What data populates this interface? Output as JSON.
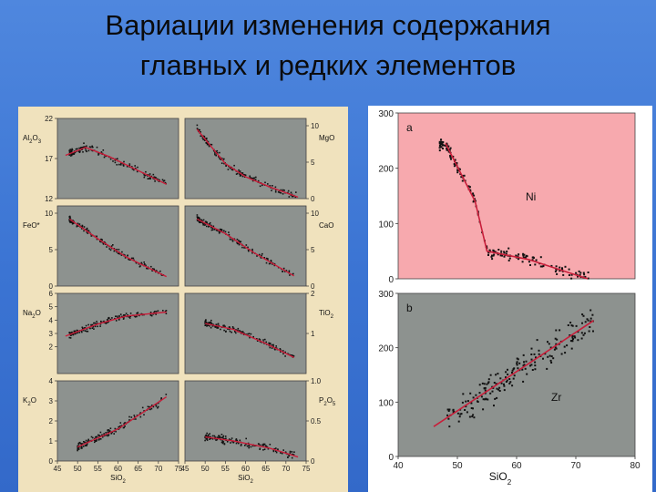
{
  "title": {
    "line1": "Вариации изменения содержания",
    "line2": "главных и редких элементов"
  },
  "colors": {
    "background": "#3b74d3",
    "left_panel": "#f0e2bd",
    "plot_gray": "#8d928f",
    "plot_pink": "#f7a9ae",
    "trend": "#c81e3a",
    "points": "#111111"
  },
  "chart_data": [
    {
      "type": "scatter",
      "id": "al2o3",
      "label": "Al2O3",
      "xlim": [
        45,
        75
      ],
      "ylim": [
        12,
        22
      ],
      "yticks": [
        12,
        17,
        22
      ],
      "axis_side": "left",
      "trend": [
        [
          47,
          17.4
        ],
        [
          52,
          18.4
        ],
        [
          58,
          17.2
        ],
        [
          65,
          15.5
        ],
        [
          72,
          13.8
        ]
      ],
      "spread": 0.7
    },
    {
      "type": "scatter",
      "id": "mgo",
      "label": "MgO",
      "xlim": [
        45,
        75
      ],
      "ylim": [
        0,
        11
      ],
      "yticks": [
        0,
        5,
        10
      ],
      "axis_side": "right",
      "trend": [
        [
          48,
          9.5
        ],
        [
          52,
          6.8
        ],
        [
          55,
          4.8
        ],
        [
          60,
          3.0
        ],
        [
          66,
          1.6
        ],
        [
          73,
          0.2
        ]
      ],
      "spread": 0.7
    },
    {
      "type": "scatter",
      "id": "feo",
      "label": "FeO*",
      "xlim": [
        45,
        75
      ],
      "ylim": [
        0,
        11
      ],
      "yticks": [
        0,
        5,
        10
      ],
      "axis_side": "left",
      "trend": [
        [
          48,
          9.2
        ],
        [
          55,
          6.5
        ],
        [
          62,
          4.0
        ],
        [
          72,
          1.3
        ]
      ],
      "spread": 0.6
    },
    {
      "type": "scatter",
      "id": "cao",
      "label": "CaO",
      "xlim": [
        45,
        75
      ],
      "ylim": [
        0,
        11
      ],
      "yticks": [
        0,
        5,
        10
      ],
      "axis_side": "right",
      "trend": [
        [
          48,
          9.2
        ],
        [
          55,
          7.2
        ],
        [
          62,
          4.6
        ],
        [
          72,
          1.4
        ]
      ],
      "spread": 0.6
    },
    {
      "type": "scatter",
      "id": "na2o",
      "label": "Na2O",
      "xlim": [
        45,
        75
      ],
      "ylim": [
        0,
        6
      ],
      "yticks": [
        0,
        1,
        2,
        3,
        4,
        5,
        6
      ],
      "axis_side": "left",
      "trend": [
        [
          47,
          2.8
        ],
        [
          55,
          3.7
        ],
        [
          62,
          4.3
        ],
        [
          72,
          4.6
        ]
      ],
      "spread": 0.35
    },
    {
      "type": "scatter",
      "id": "tio2",
      "label": "TiO2",
      "xlim": [
        45,
        75
      ],
      "ylim": [
        0,
        2
      ],
      "yticks": [
        0,
        1,
        2
      ],
      "axis_side": "right",
      "trend": [
        [
          50,
          1.25
        ],
        [
          57,
          1.1
        ],
        [
          65,
          0.75
        ],
        [
          72,
          0.4
        ]
      ],
      "spread": 0.12
    },
    {
      "type": "scatter",
      "id": "k2o",
      "label": "K2O",
      "xlim": [
        45,
        75
      ],
      "ylim": [
        0,
        4
      ],
      "yticks": [
        0,
        1,
        2,
        3,
        4
      ],
      "axis_side": "left",
      "trend": [
        [
          50,
          0.7
        ],
        [
          60,
          1.6
        ],
        [
          72,
          3.2
        ]
      ],
      "spread": 0.3
    },
    {
      "type": "scatter",
      "id": "p2o5",
      "label": "P2O5",
      "xlim": [
        45,
        75
      ],
      "ylim": [
        0,
        1
      ],
      "yticks": [
        0,
        0.5,
        1.0
      ],
      "axis_side": "right",
      "trend": [
        [
          50,
          0.3
        ],
        [
          57,
          0.25
        ],
        [
          66,
          0.16
        ],
        [
          73,
          0.05
        ]
      ],
      "spread": 0.07
    },
    {
      "type": "scatter",
      "id": "ni",
      "panel": "a",
      "label": "Ni",
      "xlim": [
        40,
        80
      ],
      "ylim": [
        0,
        300
      ],
      "yticks": [
        0,
        100,
        200,
        300
      ],
      "trend": [
        [
          48,
          245
        ],
        [
          53,
          140
        ],
        [
          55,
          50
        ],
        [
          62,
          35
        ],
        [
          72,
          0
        ]
      ],
      "spread": 15
    },
    {
      "type": "scatter",
      "id": "zr",
      "panel": "b",
      "label": "Zr",
      "xlim": [
        40,
        80
      ],
      "ylim": [
        0,
        300
      ],
      "yticks": [
        0,
        100,
        200,
        300
      ],
      "xticks": [
        40,
        50,
        60,
        70,
        80
      ],
      "xlabel": "SiO2",
      "trend": [
        [
          46,
          55
        ],
        [
          73,
          250
        ]
      ],
      "spread": 40
    }
  ],
  "axis": {
    "x_ticks_left": [
      "45",
      "50",
      "55",
      "60",
      "65",
      "70",
      "75"
    ],
    "x_label": "SiO",
    "x_label_sub": "2"
  },
  "panel_labels": {
    "a": "a",
    "b": "b",
    "ni": "Ni",
    "zr": "Zr"
  },
  "ylabels_left": {
    "al2o3": {
      "main": "Al",
      "s1": "2",
      "m2": "O",
      "s2": "3"
    },
    "feo": {
      "main": "FeO*"
    },
    "na2o": {
      "main": "Na",
      "s1": "2",
      "m2": "O"
    },
    "k2o": {
      "main": "K",
      "s1": "2",
      "m2": "O"
    }
  },
  "ylabels_right": {
    "mgo": {
      "main": "MgO"
    },
    "cao": {
      "main": "CaO"
    },
    "tio2": {
      "main": "TiO",
      "s1": "2"
    },
    "p2o5": {
      "main": "P",
      "s1": "2",
      "m2": "O",
      "s2": "5"
    }
  },
  "ytick_labels": {
    "al2o3": [
      "12",
      "17",
      "22"
    ],
    "mgo": [
      "0",
      "5",
      "10"
    ],
    "feo": [
      "0",
      "5",
      "10"
    ],
    "cao": [
      "0",
      "5",
      "10"
    ],
    "na2o": [
      "2",
      "3",
      "4",
      "5",
      "6"
    ],
    "tio2": [
      "1",
      "2"
    ],
    "k2o": [
      "0",
      "1",
      "2",
      "3",
      "4"
    ],
    "p2o5": [
      "0",
      "0.5",
      "1.0"
    ],
    "right_a": [
      "0",
      "100",
      "200",
      "300"
    ],
    "right_b": [
      "0",
      "100",
      "200",
      "300"
    ],
    "right_x": [
      "40",
      "50",
      "60",
      "70",
      "80"
    ]
  }
}
